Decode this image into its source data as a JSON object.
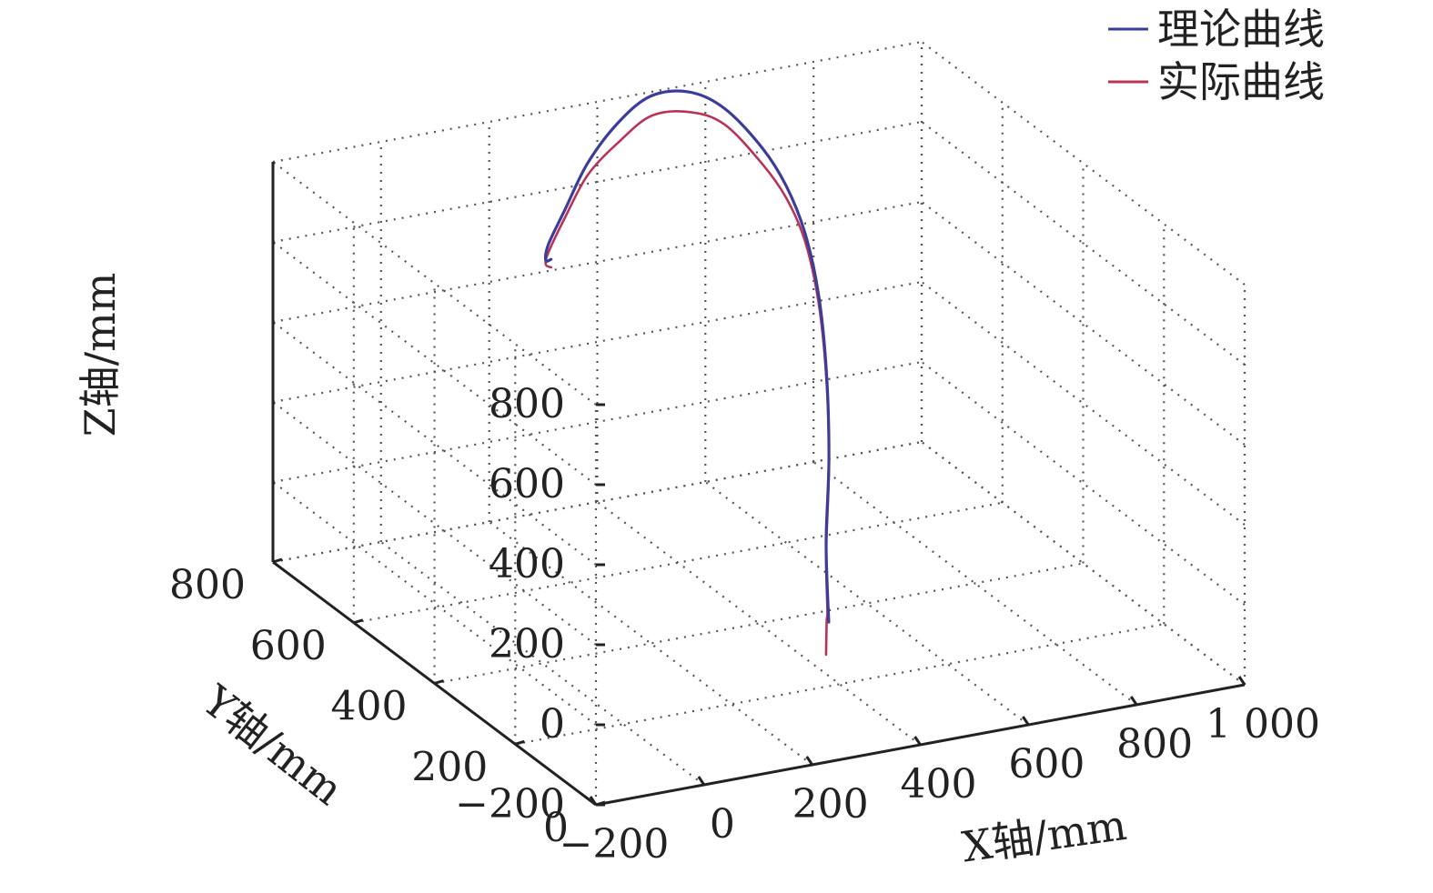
{
  "chart_data": {
    "type": "line",
    "projection": "3d",
    "grid": true,
    "legend_position": "top-right",
    "x_axis": {
      "label": "X轴/mm",
      "ticks": [
        "−200",
        "0",
        "200",
        "400",
        "600",
        "800",
        "1 000"
      ],
      "range": [
        -200,
        1000
      ]
    },
    "y_axis": {
      "label": "Y轴/mm",
      "ticks": [
        "0",
        "200",
        "400",
        "600",
        "800"
      ],
      "range": [
        0,
        800
      ]
    },
    "z_axis": {
      "label": "Z轴/mm",
      "ticks": [
        "−200",
        "0",
        "200",
        "400",
        "600",
        "800"
      ],
      "range": [
        -200,
        800
      ]
    },
    "series": [
      {
        "name": "理论曲线",
        "color": "#3c3c99",
        "points": [
          [
            380,
            200,
            -40
          ],
          [
            420,
            260,
            100
          ],
          [
            470,
            320,
            260
          ],
          [
            510,
            380,
            420
          ],
          [
            540,
            440,
            560
          ],
          [
            560,
            500,
            660
          ],
          [
            570,
            560,
            730
          ],
          [
            570,
            620,
            780
          ],
          [
            560,
            700,
            820
          ],
          [
            540,
            760,
            820
          ],
          [
            500,
            800,
            790
          ],
          [
            440,
            800,
            740
          ],
          [
            360,
            770,
            680
          ],
          [
            280,
            720,
            620
          ],
          [
            220,
            680,
            580
          ],
          [
            200,
            660,
            560
          ],
          [
            210,
            660,
            560
          ]
        ]
      },
      {
        "name": "实际曲线",
        "color": "#b83456",
        "points": [
          [
            375,
            200,
            -120
          ],
          [
            380,
            205,
            -40
          ],
          [
            400,
            230,
            -40
          ],
          [
            420,
            260,
            80
          ],
          [
            470,
            320,
            240
          ],
          [
            510,
            380,
            400
          ],
          [
            540,
            440,
            540
          ],
          [
            560,
            500,
            640
          ],
          [
            570,
            560,
            700
          ],
          [
            570,
            620,
            740
          ],
          [
            560,
            700,
            780
          ],
          [
            540,
            760,
            770
          ],
          [
            500,
            800,
            740
          ],
          [
            440,
            800,
            690
          ],
          [
            360,
            770,
            650
          ],
          [
            280,
            720,
            600
          ],
          [
            220,
            680,
            560
          ],
          [
            200,
            660,
            550
          ],
          [
            210,
            660,
            540
          ]
        ]
      }
    ]
  }
}
